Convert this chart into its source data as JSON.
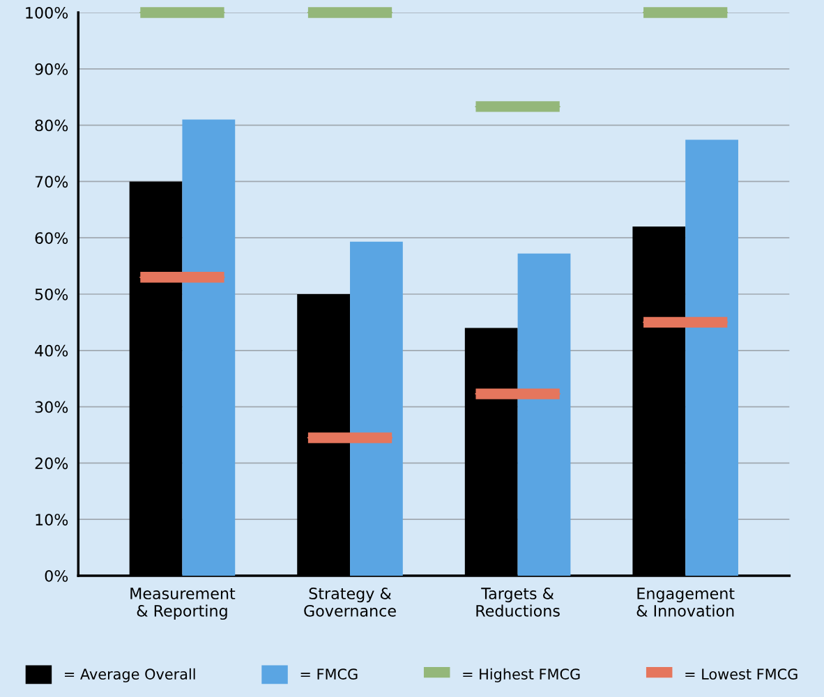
{
  "chart_data": {
    "type": "bar",
    "categories": [
      "Measurement\n& Reporting",
      "Strategy &\nGovernance",
      "Targets &\nReductions",
      "Engagement\n& Innovation"
    ],
    "series": [
      {
        "name": "= Average Overall",
        "color": "#000000",
        "values": [
          70,
          50,
          44,
          62
        ]
      },
      {
        "name": "= FMCG",
        "color": "#5aa5e3",
        "values": [
          81,
          59.3,
          57.2,
          77.4
        ]
      },
      {
        "name": "= Highest FMCG",
        "type": "box",
        "color": "#94b77a",
        "boxes": [
          {
            "low": 100,
            "q1": 100,
            "median": 100,
            "q3": 100,
            "high": 100
          },
          {
            "low": 100,
            "q1": 100,
            "median": 100,
            "q3": 100,
            "high": 100
          },
          {
            "low": 83.3,
            "q1": 83.3,
            "median": 83.3,
            "q3": 83.3,
            "high": 83.3
          },
          {
            "low": 100,
            "q1": 100,
            "median": 100,
            "q3": 100,
            "high": 100
          }
        ]
      },
      {
        "name": "= Lowest FMCG",
        "type": "box",
        "color": "#e5765d",
        "boxes": [
          {
            "low": 53,
            "q1": 53,
            "median": 53,
            "q3": 53,
            "high": 53
          },
          {
            "low": 24.5,
            "q1": 24.5,
            "median": 24.5,
            "q3": 24.5,
            "high": 24.5
          },
          {
            "low": 32.3,
            "q1": 32.3,
            "median": 32.3,
            "q3": 32.3,
            "high": 32.3
          },
          {
            "low": 45,
            "q1": 45,
            "median": 45,
            "q3": 45,
            "high": 45
          }
        ]
      }
    ],
    "ylim": [
      0,
      100
    ],
    "yticks": [
      {
        "value": 0,
        "label": "0%"
      },
      {
        "value": 10,
        "label": "10%"
      },
      {
        "value": 20,
        "label": "20%"
      },
      {
        "value": 30,
        "label": "30%"
      },
      {
        "value": 40,
        "label": "40%"
      },
      {
        "value": 50,
        "label": "50%"
      },
      {
        "value": 60,
        "label": "60%"
      },
      {
        "value": 70,
        "label": "70%"
      },
      {
        "value": 80,
        "label": "80%"
      },
      {
        "value": 90,
        "label": "90%"
      },
      {
        "value": 100,
        "label": "100%"
      }
    ],
    "grid": "y",
    "legend": "bottom"
  }
}
